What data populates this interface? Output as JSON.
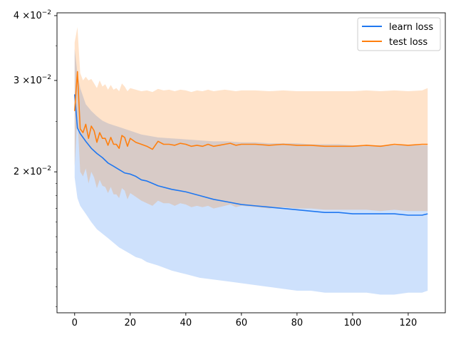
{
  "chart_data": {
    "type": "line",
    "title": "",
    "xlabel": "",
    "ylabel": "",
    "yscale": "log",
    "xlim": [
      -6.35,
      133.35
    ],
    "ylim": [
      0.0107,
      0.0405
    ],
    "grid": false,
    "legend": {
      "placement": "top-right"
    },
    "xticks": [
      0,
      20,
      40,
      60,
      80,
      100,
      120
    ],
    "xtick_labels": [
      "0",
      "20",
      "40",
      "60",
      "80",
      "100",
      "120"
    ],
    "yticks": [
      0.02,
      0.03,
      0.04
    ],
    "ytick_labels": [
      {
        "mantissa": "2",
        "base": "×10",
        "exp": "−2"
      },
      {
        "mantissa": "3",
        "base": "×10",
        "exp": "−2"
      },
      {
        "mantissa": "4",
        "base": "×10",
        "exp": "−2"
      }
    ],
    "series": [
      {
        "name": "learn loss",
        "color": "#1f77f0",
        "band_color": "#cce3fb",
        "x": [
          0,
          1,
          2,
          4,
          6,
          8,
          10,
          12,
          14,
          16,
          18,
          20,
          22,
          24,
          26,
          28,
          30,
          35,
          40,
          45,
          50,
          55,
          60,
          65,
          70,
          75,
          80,
          85,
          90,
          95,
          100,
          105,
          110,
          115,
          120,
          125,
          127
        ],
        "values": [
          0.0282,
          0.0243,
          0.0237,
          0.0229,
          0.0222,
          0.0217,
          0.0213,
          0.0208,
          0.0205,
          0.0202,
          0.0199,
          0.0198,
          0.0196,
          0.0193,
          0.0192,
          0.019,
          0.0188,
          0.0185,
          0.0183,
          0.018,
          0.0177,
          0.0175,
          0.0173,
          0.0172,
          0.0171,
          0.017,
          0.0169,
          0.0168,
          0.0167,
          0.0167,
          0.0166,
          0.0166,
          0.0166,
          0.0166,
          0.0165,
          0.0165,
          0.0166
        ],
        "band_upper": [
          0.0345,
          0.031,
          0.029,
          0.027,
          0.0262,
          0.0256,
          0.0251,
          0.0248,
          0.0246,
          0.0244,
          0.0242,
          0.024,
          0.0238,
          0.0236,
          0.0235,
          0.0234,
          0.0233,
          0.0232,
          0.0231,
          0.023,
          0.0229,
          0.0229,
          0.0228,
          0.0228,
          0.0227,
          0.0227,
          0.0227,
          0.0226,
          0.0226,
          0.0226,
          0.0225,
          0.0225,
          0.0225,
          0.0225,
          0.0225,
          0.0225,
          0.0225
        ],
        "band_lower": [
          0.0195,
          0.0178,
          0.0172,
          0.0166,
          0.016,
          0.0155,
          0.0152,
          0.0149,
          0.0146,
          0.0143,
          0.0141,
          0.0139,
          0.0137,
          0.0136,
          0.0134,
          0.0133,
          0.0132,
          0.0129,
          0.0127,
          0.0125,
          0.0124,
          0.0123,
          0.0122,
          0.0121,
          0.012,
          0.0119,
          0.0118,
          0.0118,
          0.0117,
          0.0117,
          0.0117,
          0.0117,
          0.0116,
          0.0116,
          0.0117,
          0.0117,
          0.0118
        ]
      },
      {
        "name": "test loss",
        "color": "#ff7f0e",
        "band_color": "#ffdcc0",
        "x": [
          0,
          1,
          2,
          3,
          4,
          5,
          6,
          7,
          8,
          9,
          10,
          11,
          12,
          13,
          14,
          15,
          16,
          17,
          18,
          19,
          20,
          22,
          24,
          26,
          28,
          30,
          32,
          34,
          36,
          38,
          40,
          42,
          44,
          46,
          48,
          50,
          52,
          54,
          56,
          58,
          60,
          65,
          70,
          75,
          80,
          85,
          90,
          95,
          100,
          105,
          110,
          115,
          120,
          125,
          127
        ],
        "values": [
          0.0262,
          0.0312,
          0.0242,
          0.0238,
          0.0247,
          0.0232,
          0.0245,
          0.024,
          0.0228,
          0.0238,
          0.0232,
          0.0232,
          0.0225,
          0.0233,
          0.0226,
          0.0226,
          0.0222,
          0.0235,
          0.0233,
          0.0224,
          0.0232,
          0.0228,
          0.0226,
          0.0224,
          0.0221,
          0.0229,
          0.0226,
          0.0226,
          0.0225,
          0.0227,
          0.0226,
          0.0224,
          0.0225,
          0.0224,
          0.0226,
          0.0224,
          0.0225,
          0.0226,
          0.0227,
          0.0225,
          0.0226,
          0.0226,
          0.0225,
          0.0226,
          0.0225,
          0.0225,
          0.0224,
          0.0224,
          0.0224,
          0.0225,
          0.0224,
          0.0226,
          0.0225,
          0.0226,
          0.0226
        ],
        "band_upper": [
          0.0355,
          0.038,
          0.031,
          0.03,
          0.0305,
          0.03,
          0.0302,
          0.0296,
          0.029,
          0.03,
          0.0292,
          0.0295,
          0.0288,
          0.0294,
          0.0288,
          0.029,
          0.0286,
          0.0296,
          0.0292,
          0.0286,
          0.029,
          0.0288,
          0.0286,
          0.0287,
          0.0285,
          0.0289,
          0.0287,
          0.0288,
          0.0286,
          0.0288,
          0.0287,
          0.0285,
          0.0287,
          0.0286,
          0.0288,
          0.0286,
          0.0287,
          0.0288,
          0.0287,
          0.0286,
          0.0287,
          0.0287,
          0.0286,
          0.0287,
          0.0286,
          0.0286,
          0.0286,
          0.0286,
          0.0286,
          0.0287,
          0.0286,
          0.0287,
          0.0286,
          0.0287,
          0.029
        ],
        "band_lower": [
          0.0205,
          0.0255,
          0.02,
          0.0196,
          0.0203,
          0.019,
          0.02,
          0.0195,
          0.0186,
          0.0193,
          0.0188,
          0.0187,
          0.0182,
          0.0187,
          0.0181,
          0.0181,
          0.0178,
          0.0186,
          0.0184,
          0.0177,
          0.0182,
          0.0179,
          0.0176,
          0.0174,
          0.0172,
          0.0176,
          0.0174,
          0.0174,
          0.0172,
          0.0174,
          0.0173,
          0.0171,
          0.0172,
          0.0171,
          0.0172,
          0.017,
          0.0171,
          0.0172,
          0.0173,
          0.0171,
          0.0172,
          0.0171,
          0.017,
          0.0171,
          0.017,
          0.017,
          0.0169,
          0.0169,
          0.0169,
          0.0169,
          0.0168,
          0.0169,
          0.0168,
          0.0168,
          0.0168
        ]
      }
    ]
  }
}
